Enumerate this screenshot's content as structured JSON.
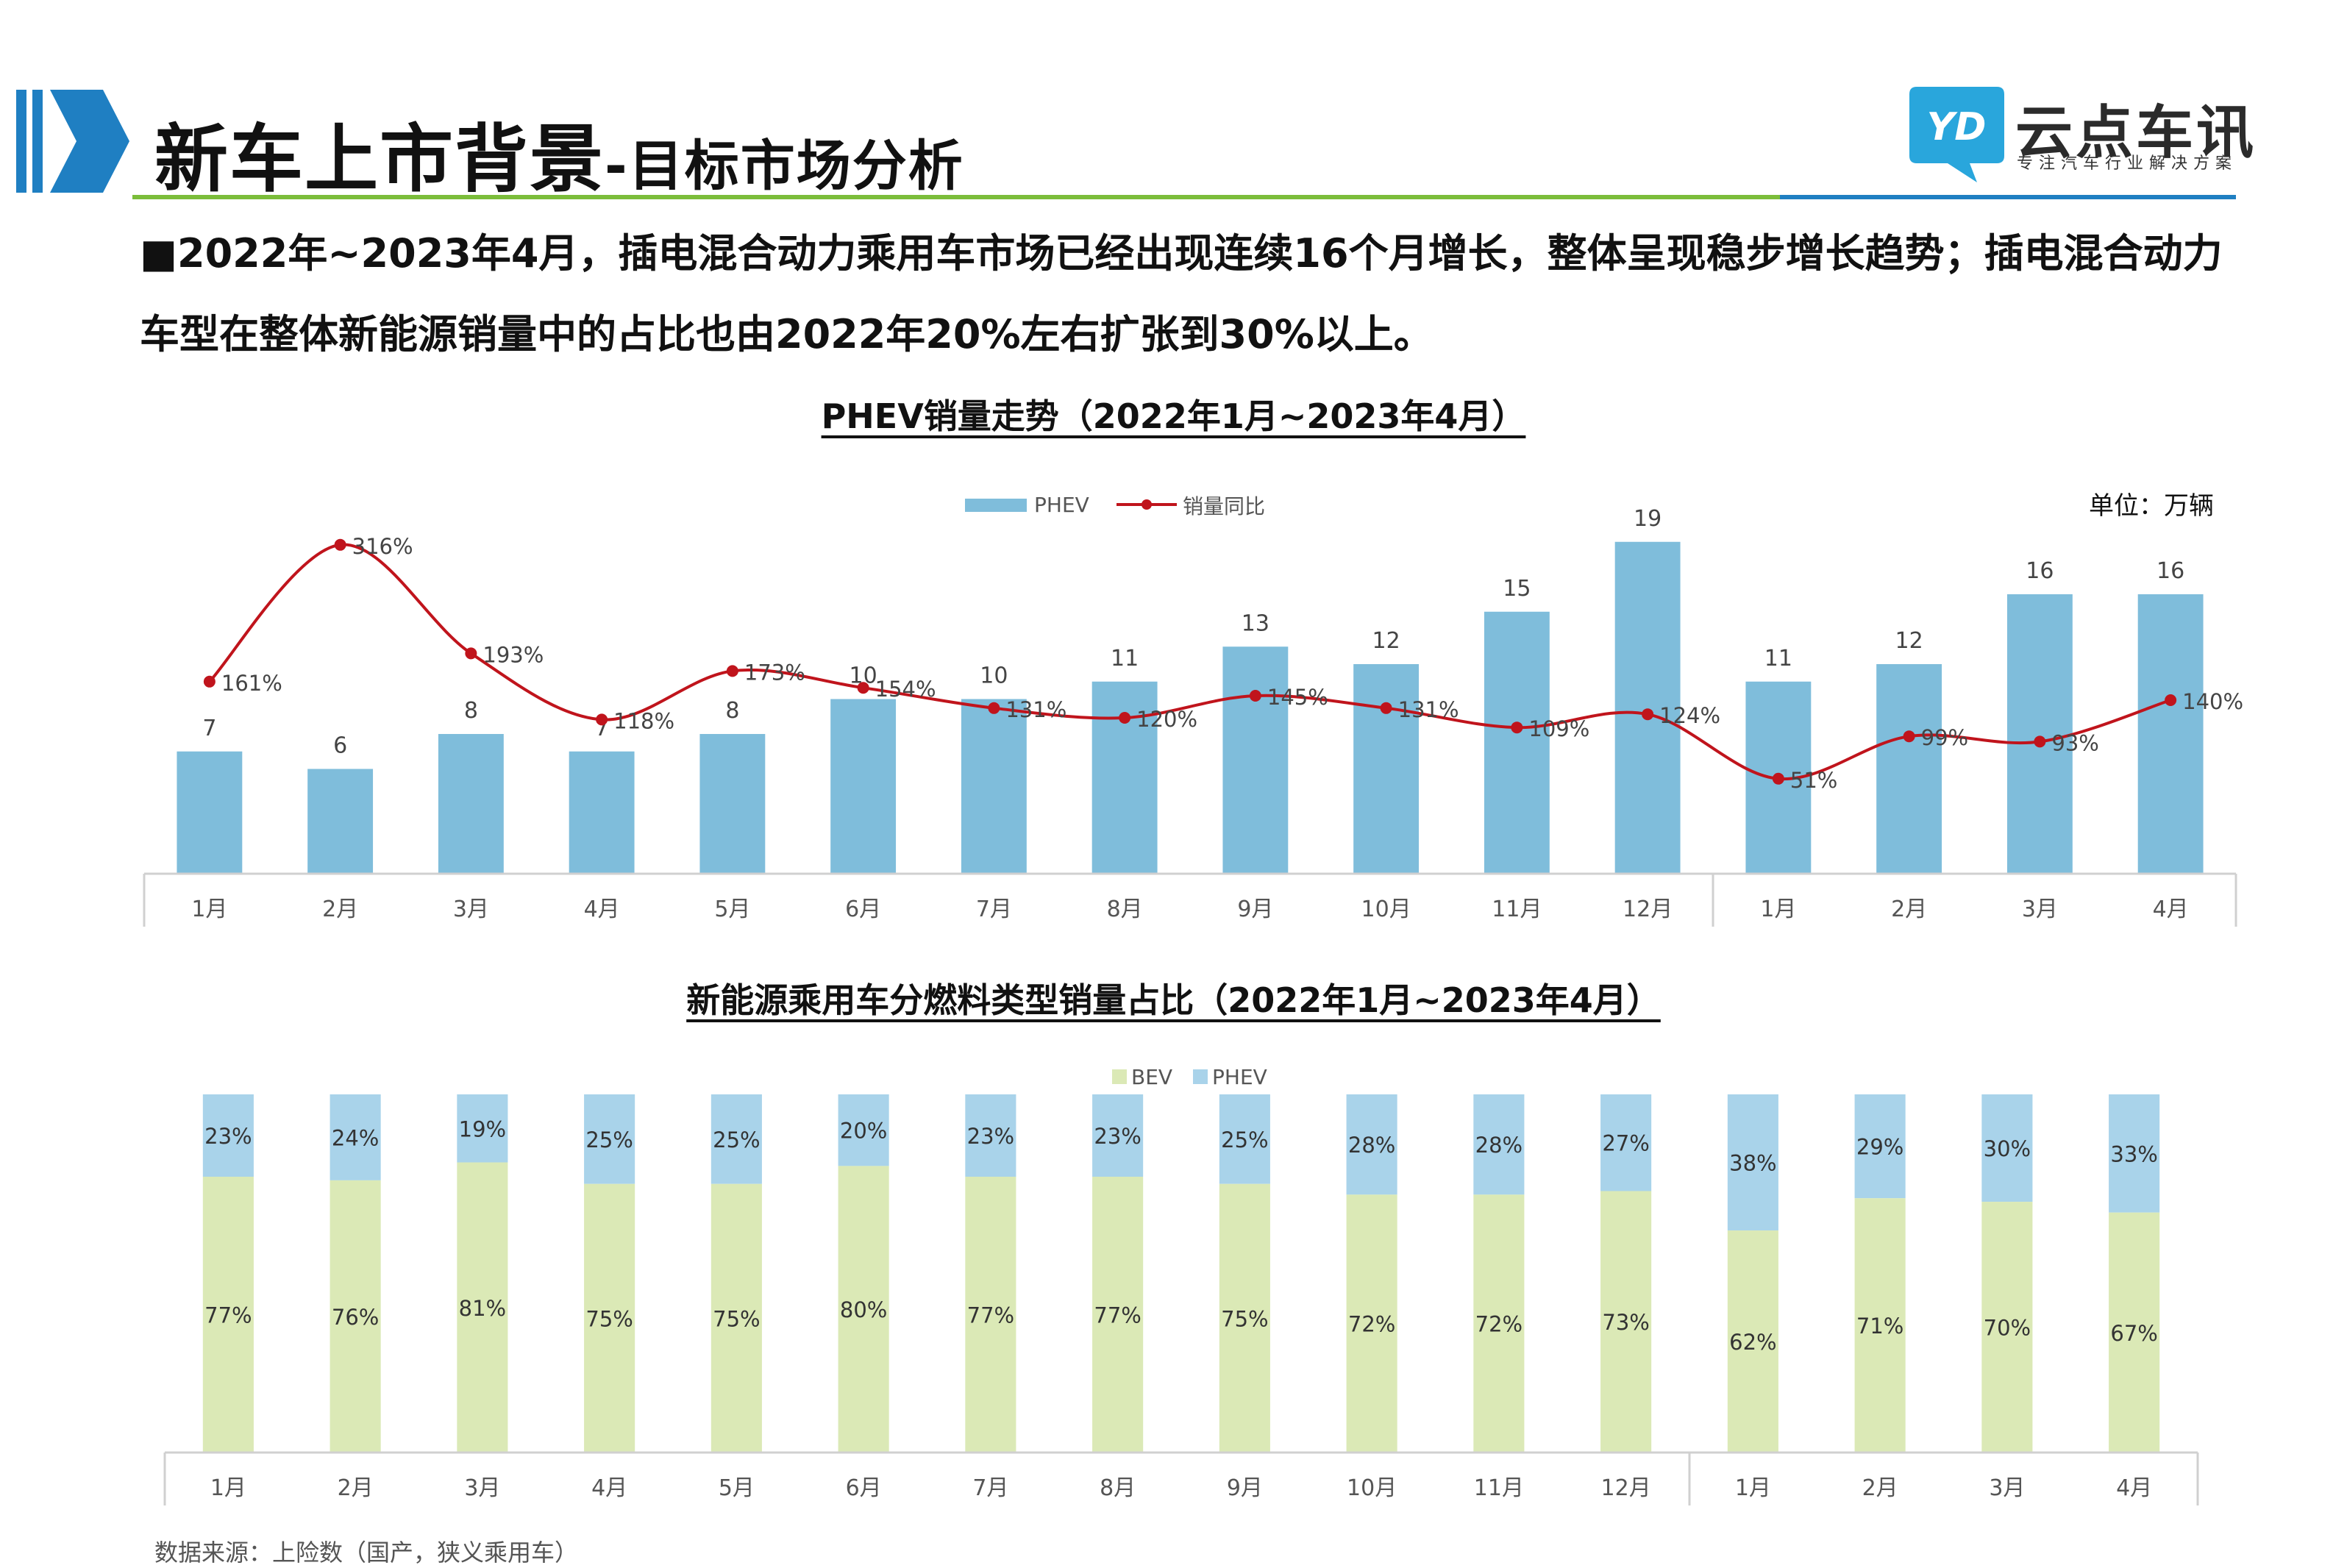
{
  "header": {
    "title_main": "新车上市背景",
    "title_sub": "-目标市场分析",
    "brand_name": "云点车讯",
    "brand_slogan": "专注汽车行业解决方案",
    "logo_text": "YD"
  },
  "intro": {
    "text": "■2022年~2023年4月，插电混合动力乘用车市场已经出现连续16个月增长，整体呈现稳步增长趋势；插电混合动力车型在整体新能源销量中的占比也由2022年20%左右扩张到30%以上。"
  },
  "unit_label": "单位：万辆",
  "source": "数据来源：上险数（国产，狭义乘用车）",
  "colors": {
    "accent_blue": "#1f7fc2",
    "accent_green": "#7bbd3a",
    "phev_bar": "#7fbddb",
    "yoy_line": "#c0141c",
    "bev_bar": "#dbe9b6",
    "phev_share": "#a9d3ea"
  },
  "chart_data": [
    {
      "type": "bar",
      "title": "PHEV销量走势（2022年1月~2023年4月）",
      "categories": [
        "1月",
        "2月",
        "3月",
        "4月",
        "5月",
        "6月",
        "7月",
        "8月",
        "9月",
        "10月",
        "11月",
        "12月",
        "1月",
        "2月",
        "3月",
        "4月"
      ],
      "series": [
        {
          "name": "PHEV",
          "type": "bar",
          "values": [
            7,
            6,
            8,
            7,
            8,
            10,
            10,
            11,
            13,
            12,
            15,
            19,
            11,
            12,
            16,
            16
          ]
        },
        {
          "name": "销量同比",
          "type": "line",
          "values": [
            161,
            316,
            193,
            118,
            173,
            154,
            131,
            120,
            145,
            131,
            109,
            124,
            51,
            99,
            93,
            140
          ],
          "labels": [
            "161%",
            "316%",
            "193%",
            "118%",
            "173%",
            "154%",
            "131%",
            "120%",
            "145%",
            "131%",
            "109%",
            "124%",
            "51%",
            "99%",
            "93%",
            "140%"
          ]
        }
      ],
      "legend": "top-center",
      "ylim": [
        0,
        20
      ]
    },
    {
      "type": "bar",
      "stacked": true,
      "title": "新能源乘用车分燃料类型销量占比（2022年1月~2023年4月）",
      "categories": [
        "1月",
        "2月",
        "3月",
        "4月",
        "5月",
        "6月",
        "7月",
        "8月",
        "9月",
        "10月",
        "11月",
        "12月",
        "1月",
        "2月",
        "3月",
        "4月"
      ],
      "series": [
        {
          "name": "BEV",
          "values": [
            77,
            76,
            81,
            75,
            75,
            80,
            77,
            77,
            75,
            72,
            72,
            73,
            62,
            71,
            70,
            67
          ],
          "labels": [
            "77%",
            "76%",
            "81%",
            "75%",
            "75%",
            "80%",
            "77%",
            "77%",
            "75%",
            "72%",
            "72%",
            "73%",
            "62%",
            "71%",
            "70%",
            "67%"
          ]
        },
        {
          "name": "PHEV",
          "values": [
            23,
            24,
            19,
            25,
            25,
            20,
            23,
            23,
            25,
            28,
            28,
            27,
            38,
            29,
            30,
            33
          ],
          "labels": [
            "23%",
            "24%",
            "19%",
            "25%",
            "25%",
            "20%",
            "23%",
            "23%",
            "25%",
            "28%",
            "28%",
            "27%",
            "38%",
            "29%",
            "30%",
            "33%"
          ]
        }
      ],
      "legend": "top-center",
      "ylim": [
        0,
        100
      ]
    }
  ]
}
